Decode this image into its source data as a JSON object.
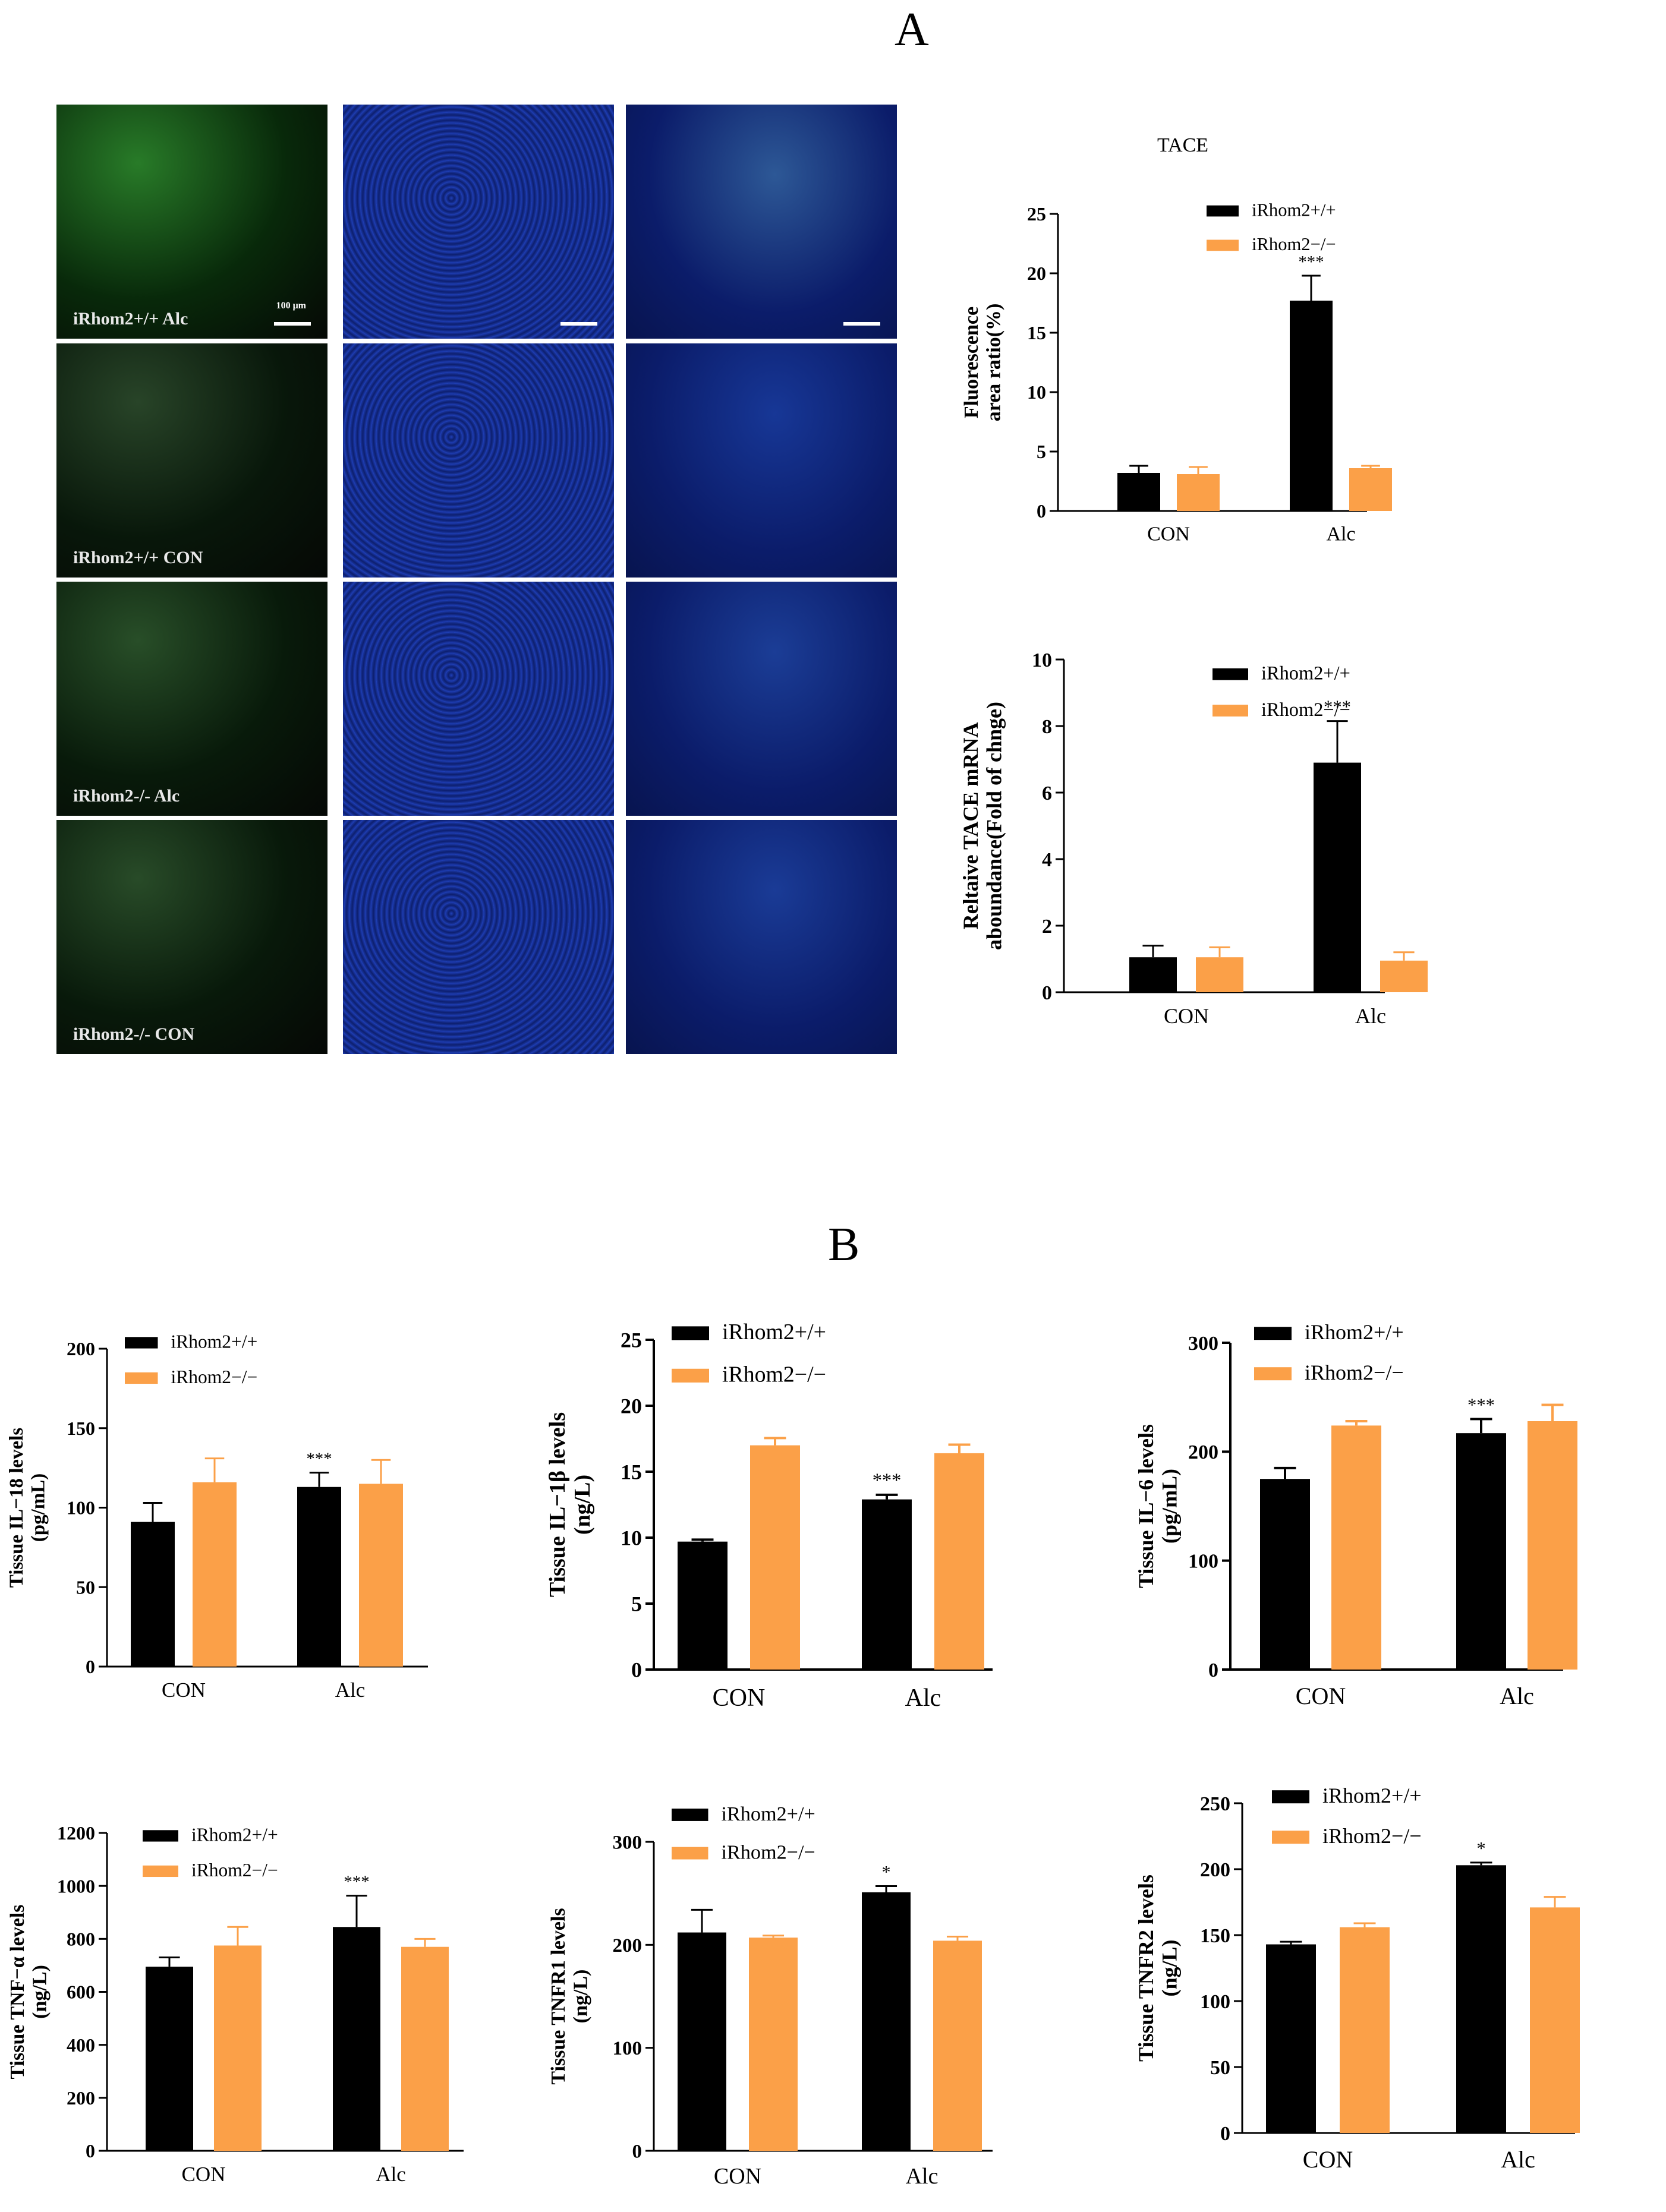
{
  "panels": {
    "A": "A",
    "B": "B"
  },
  "micrographs": {
    "row_labels": [
      "iRhom2+/+ Alc",
      "iRhom2+/+ CON",
      "iRhom2-/- Alc",
      "iRhom2-/- CON"
    ],
    "scale_label": "100 μm"
  },
  "colors": {
    "wt": "#000000",
    "ko": "#FBA048"
  },
  "chart_data": [
    {
      "id": "a1",
      "type": "bar",
      "title": "TACE",
      "ylabel_lines": [
        "Fluorescence",
        "area ratio(%)"
      ],
      "categories": [
        "CON",
        "Alc"
      ],
      "ylim": [
        0,
        25
      ],
      "ticks": [
        0,
        5,
        10,
        15,
        20,
        25
      ],
      "series": [
        {
          "name": "iRhom2+/+",
          "values": [
            3.2,
            17.7
          ],
          "errors": [
            0.6,
            2.1
          ]
        },
        {
          "name": "iRhom2−/−",
          "values": [
            3.1,
            3.6
          ],
          "errors": [
            0.6,
            0.2
          ]
        }
      ],
      "annotations": [
        {
          "category": 1,
          "series": 0,
          "text": "***"
        }
      ],
      "legend": "top-right"
    },
    {
      "id": "a2",
      "type": "bar",
      "ylabel_lines": [
        "Reltaive TACE mRNA",
        "aboundance(Fold of chnge)"
      ],
      "categories": [
        "CON",
        "Alc"
      ],
      "ylim": [
        0,
        10
      ],
      "ticks": [
        0,
        2,
        4,
        6,
        8,
        10
      ],
      "series": [
        {
          "name": "iRhom2+/+",
          "values": [
            1.05,
            6.9
          ],
          "errors": [
            0.35,
            1.25
          ]
        },
        {
          "name": "iRhom2−/−",
          "values": [
            1.05,
            0.95
          ],
          "errors": [
            0.3,
            0.25
          ]
        }
      ],
      "annotations": [
        {
          "category": 1,
          "series": 0,
          "text": "***"
        }
      ],
      "legend": "top-right"
    },
    {
      "id": "b1",
      "type": "bar",
      "ylabel_lines": [
        "Tissue IL−18 levels",
        "(pg/mL)"
      ],
      "categories": [
        "CON",
        "Alc"
      ],
      "ylim": [
        0,
        200
      ],
      "ticks": [
        0,
        50,
        100,
        150,
        200
      ],
      "series": [
        {
          "name": "iRhom2+/+",
          "values": [
            91,
            113
          ],
          "errors": [
            12,
            9
          ]
        },
        {
          "name": "iRhom2−/−",
          "values": [
            116,
            115
          ],
          "errors": [
            15,
            15
          ]
        }
      ],
      "annotations": [
        {
          "category": 1,
          "series": 0,
          "text": "***"
        }
      ],
      "legend": "top-left"
    },
    {
      "id": "b2",
      "type": "bar",
      "ylabel_lines": [
        "Tissue IL−1β levels",
        "(ng/L)"
      ],
      "categories": [
        "CON",
        "Alc"
      ],
      "ylim": [
        0,
        25
      ],
      "ticks": [
        0,
        5,
        10,
        15,
        20,
        25
      ],
      "series": [
        {
          "name": "iRhom2+/+",
          "values": [
            9.7,
            12.9
          ],
          "errors": [
            0.15,
            0.35
          ]
        },
        {
          "name": "iRhom2−/−",
          "values": [
            17.0,
            16.4
          ],
          "errors": [
            0.55,
            0.65
          ]
        }
      ],
      "annotations": [
        {
          "category": 1,
          "series": 0,
          "text": "***"
        }
      ],
      "legend": "top-left"
    },
    {
      "id": "b3",
      "type": "bar",
      "ylabel_lines": [
        "Tissue IL−6 levels",
        "(pg/mL)"
      ],
      "categories": [
        "CON",
        "Alc"
      ],
      "ylim": [
        0,
        300
      ],
      "ticks": [
        0,
        100,
        200,
        300
      ],
      "series": [
        {
          "name": "iRhom2+/+",
          "values": [
            175,
            217
          ],
          "errors": [
            10,
            13
          ]
        },
        {
          "name": "iRhom2−/−",
          "values": [
            224,
            228
          ],
          "errors": [
            4,
            15
          ]
        }
      ],
      "annotations": [
        {
          "category": 1,
          "series": 0,
          "text": "***"
        }
      ],
      "legend": "top-left"
    },
    {
      "id": "b4",
      "type": "bar",
      "ylabel_lines": [
        "Tissue TNF−α levels",
        "(ng/L)"
      ],
      "categories": [
        "CON",
        "Alc"
      ],
      "ylim": [
        0,
        1200
      ],
      "ticks": [
        0,
        200,
        400,
        600,
        800,
        1000,
        1200
      ],
      "series": [
        {
          "name": "iRhom2+/+",
          "values": [
            695,
            845
          ],
          "errors": [
            35,
            118
          ]
        },
        {
          "name": "iRhom2−/−",
          "values": [
            775,
            770
          ],
          "errors": [
            70,
            30
          ]
        }
      ],
      "annotations": [
        {
          "category": 1,
          "series": 0,
          "text": "***"
        }
      ],
      "legend": "top-left"
    },
    {
      "id": "b5",
      "type": "bar",
      "ylabel_lines": [
        "Tissue TNFR1 levels",
        "(ng/L)"
      ],
      "categories": [
        "CON",
        "Alc"
      ],
      "ylim": [
        0,
        300
      ],
      "ticks": [
        0,
        100,
        200,
        300
      ],
      "series": [
        {
          "name": "iRhom2+/+",
          "values": [
            212,
            251
          ],
          "errors": [
            22,
            6
          ]
        },
        {
          "name": "iRhom2−/−",
          "values": [
            207,
            204
          ],
          "errors": [
            2,
            4
          ]
        }
      ],
      "annotations": [
        {
          "category": 1,
          "series": 0,
          "text": "*"
        }
      ],
      "legend": "top-left"
    },
    {
      "id": "b6",
      "type": "bar",
      "ylabel_lines": [
        "Tissue TNFR2 levels",
        "(ng/L)"
      ],
      "categories": [
        "CON",
        "Alc"
      ],
      "ylim": [
        0,
        250
      ],
      "ticks": [
        0,
        50,
        100,
        150,
        200,
        250
      ],
      "series": [
        {
          "name": "iRhom2+/+",
          "values": [
            143,
            203
          ],
          "errors": [
            2,
            2
          ]
        },
        {
          "name": "iRhom2−/−",
          "values": [
            156,
            171
          ],
          "errors": [
            3,
            8
          ]
        }
      ],
      "annotations": [
        {
          "category": 1,
          "series": 0,
          "text": "*"
        }
      ],
      "legend": "top-left"
    }
  ]
}
